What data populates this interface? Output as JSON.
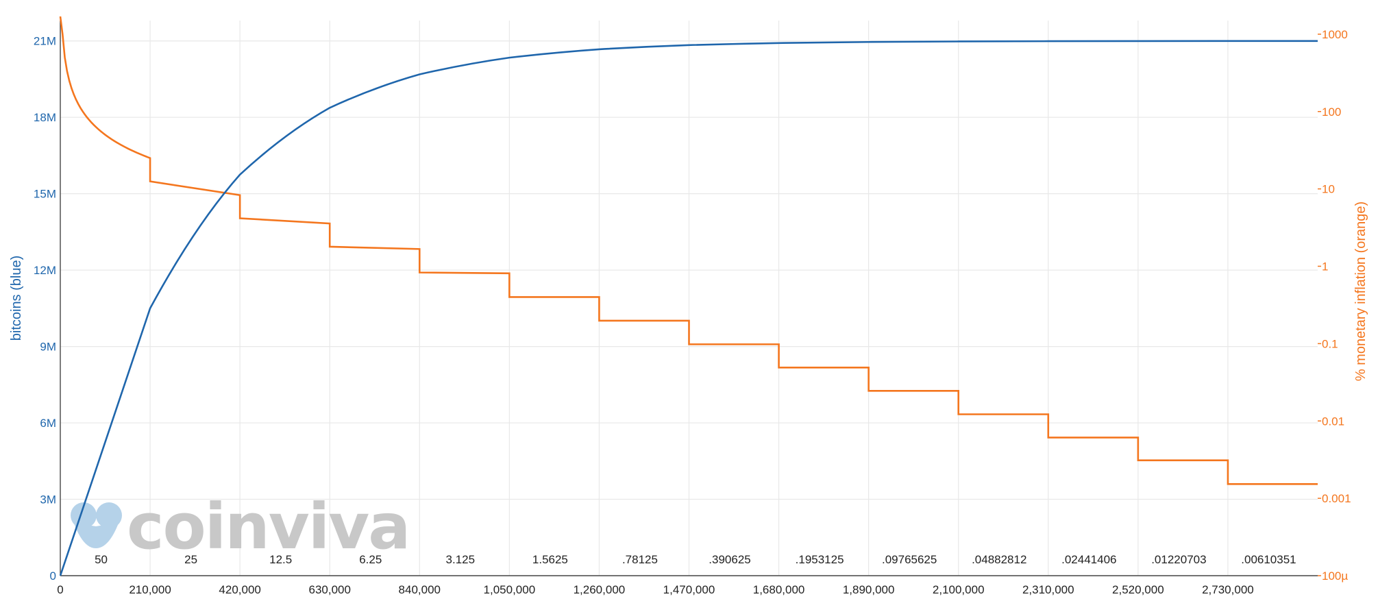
{
  "chart_data": {
    "type": "line",
    "x": [
      0,
      210000,
      420000,
      630000,
      840000,
      1050000,
      1260000,
      1470000,
      1680000,
      1890000,
      2100000,
      2310000,
      2520000,
      2730000,
      2940000
    ],
    "x_tick_labels": [
      "0",
      "210,000",
      "420,000",
      "630,000",
      "840,000",
      "1,050,000",
      "1,260,000",
      "1,470,000",
      "1,680,000",
      "1,890,000",
      "2,100,000",
      "2,310,000",
      "2,520,000",
      "2,730,000"
    ],
    "xlim": [
      0,
      2940000
    ],
    "ylabel": "bitcoins (blue)",
    "y2label": "% monetary inflation (orange)",
    "ylim": [
      0,
      21800000
    ],
    "y_ticks": [
      0,
      3000000,
      6000000,
      9000000,
      12000000,
      15000000,
      18000000,
      21000000
    ],
    "y_tick_labels": [
      "0",
      "3M",
      "6M",
      "9M",
      "12M",
      "15M",
      "18M",
      "21M"
    ],
    "y2_scale": "log",
    "y2lim": [
      0.0001,
      1500
    ],
    "y2_ticks": [
      0.0001,
      0.001,
      0.01,
      0.1,
      1,
      10,
      100,
      1000
    ],
    "y2_tick_labels": [
      "100µ",
      "0.001",
      "0.01",
      "0.1",
      "1",
      "10",
      "100",
      "1000"
    ],
    "block_rewards": [
      "50",
      "25",
      "12.5",
      "6.25",
      "3.125",
      "1.5625",
      ".78125",
      ".390625",
      ".1953125",
      ".09765625",
      ".04882812",
      ".02441406",
      ".01220703",
      ".00610351"
    ],
    "grid": true,
    "series": [
      {
        "name": "bitcoins (blue)",
        "color": "#1f66ac",
        "values": [
          0,
          10500000,
          15750000,
          18375000,
          19687500,
          20343750,
          20671875,
          20835937,
          20917968,
          20958984,
          20979492,
          20989746,
          20994873,
          20997436,
          20998718
        ]
      },
      {
        "name": "% monetary inflation (orange)",
        "color": "#f4761e",
        "segments": [
          {
            "from": 0,
            "to": 210000,
            "start": 2000,
            "end": 25
          },
          {
            "from": 210000,
            "to": 420000,
            "start": 12.5,
            "end": 8.3
          },
          {
            "from": 420000,
            "to": 630000,
            "start": 4.17,
            "end": 3.57
          },
          {
            "from": 630000,
            "to": 840000,
            "start": 1.79,
            "end": 1.67
          },
          {
            "from": 840000,
            "to": 1050000,
            "start": 0.83,
            "end": 0.81
          },
          {
            "from": 1050000,
            "to": 1260000,
            "start": 0.4,
            "end": 0.4
          },
          {
            "from": 1260000,
            "to": 1470000,
            "start": 0.198,
            "end": 0.198
          },
          {
            "from": 1470000,
            "to": 1680000,
            "start": 0.098,
            "end": 0.098
          },
          {
            "from": 1680000,
            "to": 1890000,
            "start": 0.049,
            "end": 0.049
          },
          {
            "from": 1890000,
            "to": 2100000,
            "start": 0.0245,
            "end": 0.0245
          },
          {
            "from": 2100000,
            "to": 2310000,
            "start": 0.0122,
            "end": 0.0122
          },
          {
            "from": 2310000,
            "to": 2520000,
            "start": 0.0061,
            "end": 0.0061
          },
          {
            "from": 2520000,
            "to": 2730000,
            "start": 0.0031,
            "end": 0.0031
          },
          {
            "from": 2730000,
            "to": 2940000,
            "start": 0.00153,
            "end": 0.00153
          }
        ]
      }
    ]
  },
  "watermark": {
    "text": "coinviva",
    "icon": "coinviva-logo-icon",
    "color": "#c8c8c8",
    "icon_color": "#a9cbe6"
  },
  "colors": {
    "left_axis": "#1f66ac",
    "right_axis": "#f4761e",
    "grid": "#e8e8e8"
  }
}
